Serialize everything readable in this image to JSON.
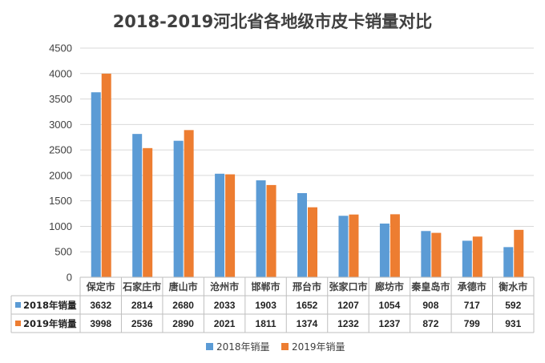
{
  "chart_data": {
    "type": "bar",
    "title": "2018-2019河北省各地级市皮卡销量对比",
    "categories": [
      "保定市",
      "石家庄市",
      "唐山市",
      "沧州市",
      "邯郸市",
      "邢台市",
      "张家口市",
      "廊坊市",
      "秦皇岛市",
      "承德市",
      "衡水市"
    ],
    "series": [
      {
        "name": "2018年销量",
        "color": "#5b9bd5",
        "values": [
          3632,
          2814,
          2680,
          2033,
          1903,
          1652,
          1207,
          1054,
          908,
          717,
          592
        ]
      },
      {
        "name": "2019年销量",
        "color": "#ed7d31",
        "values": [
          3998,
          2536,
          2890,
          2021,
          1811,
          1374,
          1232,
          1237,
          872,
          799,
          931
        ]
      }
    ],
    "ylim": [
      0,
      4500
    ],
    "yticks": [
      0,
      500,
      1000,
      1500,
      2000,
      2500,
      3000,
      3500,
      4000,
      4500
    ],
    "grid": true,
    "legend": "bottom",
    "data_table": true
  }
}
